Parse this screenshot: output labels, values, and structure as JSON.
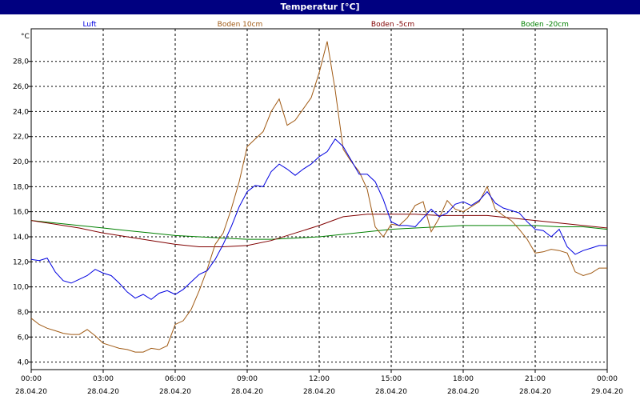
{
  "window_title": "Temperatur [°C]",
  "chart_data": {
    "type": "line",
    "title": "Temperatur [°C]",
    "ylabel": "°C",
    "xlabel": "",
    "xlim": [
      "28.04.20 00:00",
      "29.04.20 00:00"
    ],
    "ylim": [
      3.4,
      30.6
    ],
    "grid": true,
    "legend_placement": "top",
    "y_ticks": [
      "4,0",
      "6,0",
      "8,0",
      "10,0",
      "12,0",
      "14,0",
      "16,0",
      "18,0",
      "20,0",
      "22,0",
      "24,0",
      "26,0",
      "28,0"
    ],
    "x_ticks": [
      {
        "time": "00:00",
        "date": "28.04.20"
      },
      {
        "time": "03:00",
        "date": "28.04.20"
      },
      {
        "time": "06:00",
        "date": "28.04.20"
      },
      {
        "time": "09:00",
        "date": "28.04.20"
      },
      {
        "time": "12:00",
        "date": "28.04.20"
      },
      {
        "time": "15:00",
        "date": "28.04.20"
      },
      {
        "time": "18:00",
        "date": "28.04.20"
      },
      {
        "time": "21:00",
        "date": "28.04.20"
      },
      {
        "time": "00:00",
        "date": "29.04.20"
      }
    ],
    "series": [
      {
        "name": "Luft",
        "color": "#0000e0",
        "x": [
          "00:00",
          "00:20",
          "00:40",
          "01:00",
          "01:20",
          "01:40",
          "02:00",
          "02:20",
          "02:40",
          "03:00",
          "03:20",
          "03:40",
          "04:00",
          "04:20",
          "04:40",
          "05:00",
          "05:20",
          "05:40",
          "06:00",
          "06:20",
          "06:40",
          "07:00",
          "07:20",
          "07:40",
          "08:00",
          "08:20",
          "08:40",
          "09:00",
          "09:20",
          "09:40",
          "10:00",
          "10:20",
          "10:40",
          "11:00",
          "11:20",
          "11:40",
          "12:00",
          "12:20",
          "12:40",
          "13:00",
          "13:20",
          "13:40",
          "14:00",
          "14:20",
          "14:40",
          "15:00",
          "15:20",
          "15:40",
          "16:00",
          "16:20",
          "16:40",
          "17:00",
          "17:20",
          "17:40",
          "18:00",
          "18:20",
          "18:40",
          "19:00",
          "19:20",
          "19:40",
          "20:00",
          "20:20",
          "20:40",
          "21:00",
          "21:20",
          "21:40",
          "22:00",
          "22:20",
          "22:40",
          "23:00",
          "23:20",
          "23:40",
          "24:00"
        ],
        "values": [
          12.2,
          12.1,
          12.3,
          11.2,
          10.5,
          10.3,
          10.6,
          10.9,
          11.4,
          11.1,
          10.9,
          10.3,
          9.6,
          9.1,
          9.4,
          9.0,
          9.5,
          9.7,
          9.4,
          9.8,
          10.4,
          11.0,
          11.3,
          12.2,
          13.4,
          14.8,
          16.4,
          17.6,
          18.1,
          18.0,
          19.2,
          19.8,
          19.4,
          18.9,
          19.4,
          19.8,
          20.4,
          20.8,
          21.8,
          21.2,
          20.1,
          19.0,
          19.0,
          18.4,
          17.0,
          15.2,
          14.9,
          14.9,
          14.8,
          15.5,
          16.2,
          15.6,
          15.9,
          16.6,
          16.8,
          16.5,
          16.9,
          17.6,
          16.7,
          16.3,
          16.1,
          15.9,
          15.2,
          14.6,
          14.5,
          14.0,
          14.6,
          13.2,
          12.6,
          12.9,
          13.1,
          13.3,
          13.3
        ]
      },
      {
        "name": "Boden 10cm",
        "color": "#a05a14",
        "x": [
          "00:00",
          "00:20",
          "00:40",
          "01:00",
          "01:20",
          "01:40",
          "02:00",
          "02:20",
          "02:40",
          "03:00",
          "03:20",
          "03:40",
          "04:00",
          "04:20",
          "04:40",
          "05:00",
          "05:20",
          "05:40",
          "06:00",
          "06:20",
          "06:40",
          "07:00",
          "07:20",
          "07:40",
          "08:00",
          "08:20",
          "08:40",
          "09:00",
          "09:20",
          "09:40",
          "10:00",
          "10:20",
          "10:40",
          "11:00",
          "11:20",
          "11:40",
          "12:00",
          "12:20",
          "12:40",
          "13:00",
          "13:20",
          "13:40",
          "14:00",
          "14:20",
          "14:40",
          "15:00",
          "15:20",
          "15:40",
          "16:00",
          "16:20",
          "16:40",
          "17:00",
          "17:20",
          "17:40",
          "18:00",
          "18:20",
          "18:40",
          "19:00",
          "19:20",
          "19:40",
          "20:00",
          "20:20",
          "20:40",
          "21:00",
          "21:20",
          "21:40",
          "22:00",
          "22:20",
          "22:40",
          "23:00",
          "23:20",
          "23:40",
          "24:00"
        ],
        "values": [
          7.5,
          7.0,
          6.7,
          6.5,
          6.3,
          6.2,
          6.2,
          6.6,
          6.1,
          5.5,
          5.3,
          5.1,
          5.0,
          4.8,
          4.8,
          5.1,
          5.0,
          5.3,
          7.0,
          7.3,
          8.2,
          9.7,
          11.4,
          13.4,
          14.3,
          16.2,
          18.4,
          21.2,
          21.8,
          22.4,
          24.0,
          25.0,
          22.9,
          23.3,
          24.2,
          25.1,
          27.1,
          29.6,
          25.7,
          21.0,
          20.0,
          19.2,
          17.8,
          14.8,
          14.0,
          15.0,
          14.9,
          15.5,
          16.5,
          16.8,
          14.4,
          15.5,
          16.9,
          16.2,
          16.0,
          16.4,
          16.8,
          18.0,
          16.2,
          15.7,
          15.3,
          14.6,
          13.8,
          12.7,
          12.8,
          13.0,
          12.9,
          12.7,
          11.2,
          10.9,
          11.1,
          11.5,
          11.5
        ]
      },
      {
        "name": "Boden -5cm",
        "color": "#800000",
        "x": [
          "00:00",
          "01:00",
          "02:00",
          "03:00",
          "04:00",
          "05:00",
          "06:00",
          "07:00",
          "08:00",
          "09:00",
          "10:00",
          "11:00",
          "12:00",
          "13:00",
          "14:00",
          "15:00",
          "16:00",
          "17:00",
          "18:00",
          "19:00",
          "20:00",
          "21:00",
          "22:00",
          "23:00",
          "24:00"
        ],
        "values": [
          15.3,
          15.0,
          14.7,
          14.3,
          14.0,
          13.7,
          13.4,
          13.2,
          13.2,
          13.3,
          13.7,
          14.3,
          14.9,
          15.6,
          15.8,
          15.8,
          15.8,
          15.7,
          15.7,
          15.7,
          15.5,
          15.3,
          15.1,
          14.9,
          14.7
        ]
      },
      {
        "name": "Boden -20cm",
        "color": "#008000",
        "x": [
          "00:00",
          "01:00",
          "02:00",
          "03:00",
          "04:00",
          "05:00",
          "06:00",
          "07:00",
          "08:00",
          "09:00",
          "10:00",
          "11:00",
          "12:00",
          "13:00",
          "14:00",
          "15:00",
          "16:00",
          "17:00",
          "18:00",
          "19:00",
          "20:00",
          "21:00",
          "22:00",
          "23:00",
          "24:00"
        ],
        "values": [
          15.3,
          15.1,
          14.9,
          14.7,
          14.5,
          14.3,
          14.1,
          14.0,
          13.9,
          13.8,
          13.8,
          13.9,
          14.0,
          14.2,
          14.4,
          14.6,
          14.7,
          14.8,
          14.9,
          14.9,
          14.9,
          14.9,
          14.8,
          14.8,
          14.6
        ]
      }
    ]
  }
}
